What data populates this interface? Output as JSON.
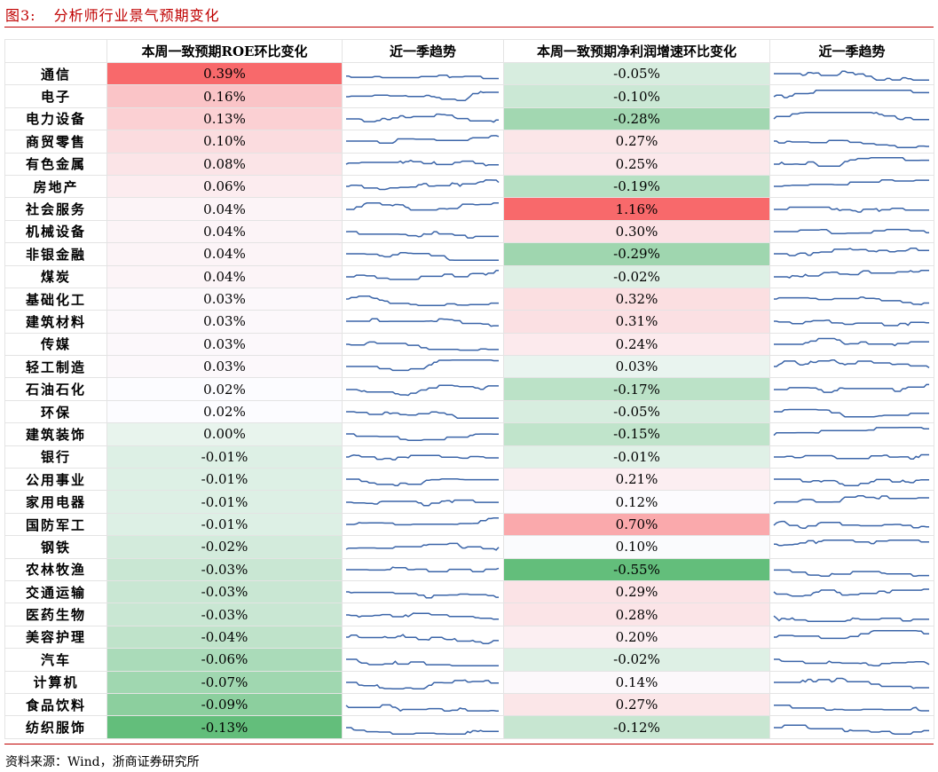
{
  "title": {
    "figure": "图3:",
    "text": "分析师行业景气预期变化"
  },
  "headers": [
    "",
    "本周一致预期ROE环比变化",
    "近一季趋势",
    "本周一致预期净利润增速环比变化",
    "近一季趋势"
  ],
  "colors": {
    "positive": "#f8696b",
    "negative": "#63be7b",
    "neutral": "#fcfcff",
    "sparkline": "#3a64a8",
    "title": "#c00000"
  },
  "rows": [
    {
      "industry": "通信",
      "roe": "0.39%",
      "profit": "-0.05%"
    },
    {
      "industry": "电子",
      "roe": "0.16%",
      "profit": "-0.10%"
    },
    {
      "industry": "电力设备",
      "roe": "0.13%",
      "profit": "-0.28%"
    },
    {
      "industry": "商贸零售",
      "roe": "0.10%",
      "profit": "0.27%"
    },
    {
      "industry": "有色金属",
      "roe": "0.08%",
      "profit": "0.25%"
    },
    {
      "industry": "房地产",
      "roe": "0.06%",
      "profit": "-0.19%"
    },
    {
      "industry": "社会服务",
      "roe": "0.04%",
      "profit": "1.16%"
    },
    {
      "industry": "机械设备",
      "roe": "0.04%",
      "profit": "0.30%"
    },
    {
      "industry": "非银金融",
      "roe": "0.04%",
      "profit": "-0.29%"
    },
    {
      "industry": "煤炭",
      "roe": "0.04%",
      "profit": "-0.02%"
    },
    {
      "industry": "基础化工",
      "roe": "0.03%",
      "profit": "0.32%"
    },
    {
      "industry": "建筑材料",
      "roe": "0.03%",
      "profit": "0.31%"
    },
    {
      "industry": "传媒",
      "roe": "0.03%",
      "profit": "0.24%"
    },
    {
      "industry": "轻工制造",
      "roe": "0.03%",
      "profit": "0.03%"
    },
    {
      "industry": "石油石化",
      "roe": "0.02%",
      "profit": "-0.17%"
    },
    {
      "industry": "环保",
      "roe": "0.02%",
      "profit": "-0.05%"
    },
    {
      "industry": "建筑装饰",
      "roe": "0.00%",
      "profit": "-0.15%"
    },
    {
      "industry": "银行",
      "roe": "-0.01%",
      "profit": "-0.01%"
    },
    {
      "industry": "公用事业",
      "roe": "-0.01%",
      "profit": "0.21%"
    },
    {
      "industry": "家用电器",
      "roe": "-0.01%",
      "profit": "0.12%"
    },
    {
      "industry": "国防军工",
      "roe": "-0.01%",
      "profit": "0.70%"
    },
    {
      "industry": "钢铁",
      "roe": "-0.02%",
      "profit": "0.10%"
    },
    {
      "industry": "农林牧渔",
      "roe": "-0.03%",
      "profit": "-0.55%"
    },
    {
      "industry": "交通运输",
      "roe": "-0.03%",
      "profit": "0.29%"
    },
    {
      "industry": "医药生物",
      "roe": "-0.03%",
      "profit": "0.28%"
    },
    {
      "industry": "美容护理",
      "roe": "-0.04%",
      "profit": "0.20%"
    },
    {
      "industry": "汽车",
      "roe": "-0.06%",
      "profit": "-0.02%"
    },
    {
      "industry": "计算机",
      "roe": "-0.07%",
      "profit": "0.14%"
    },
    {
      "industry": "食品饮料",
      "roe": "-0.09%",
      "profit": "0.27%"
    },
    {
      "industry": "纺织服饰",
      "roe": "-0.13%",
      "profit": "-0.12%"
    }
  ],
  "source": "资料来源：Wind，浙商证券研究所"
}
